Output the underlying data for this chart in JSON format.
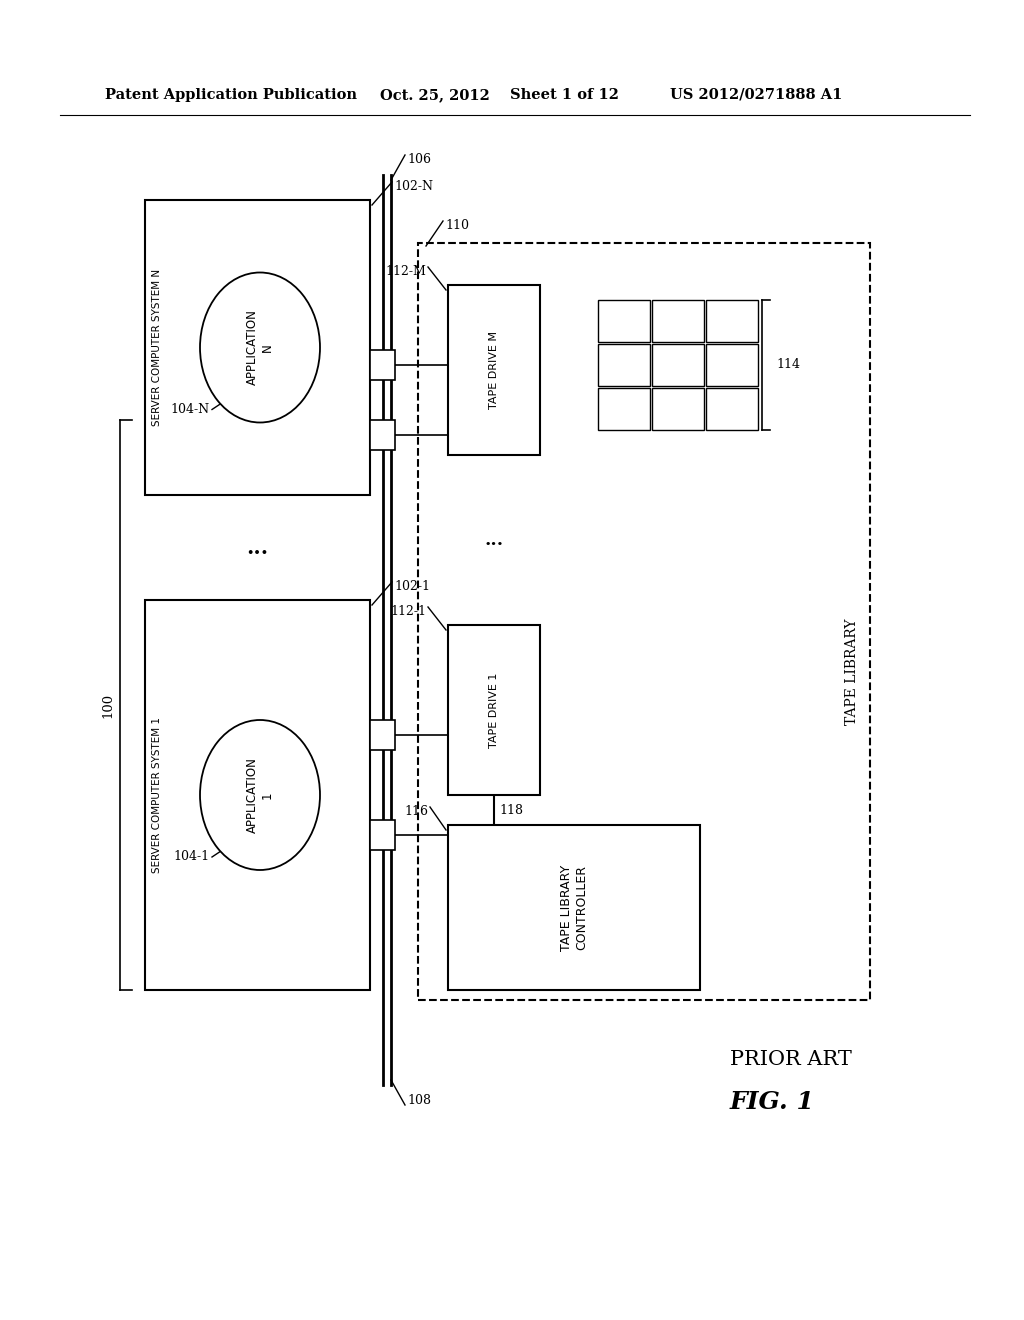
{
  "bg_color": "#ffffff",
  "header_text": "Patent Application Publication",
  "header_date": "Oct. 25, 2012",
  "header_sheet": "Sheet 1 of 12",
  "header_patent": "US 2012/0271888 A1",
  "fig_label": "FIG. 1",
  "prior_art": "PRIOR ART",
  "label_100": "100",
  "label_102_1": "102-1",
  "label_102_N": "102-N",
  "label_104_1": "104-1",
  "label_104_N": "104-N",
  "label_106": "106",
  "label_108": "108",
  "label_110": "110",
  "label_112_1": "112-1",
  "label_112_M": "112-M",
  "label_114": "114",
  "label_116": "116",
  "label_118": "118",
  "text_server1": "SERVER COMPUTER SYSTEM 1",
  "text_serverN": "SERVER COMPUTER SYSTEM N",
  "text_app1": "APPLICATION\n1",
  "text_appN": "APPLICATION\nN",
  "text_tape_drive1": "TAPE DRIVE 1",
  "text_tape_driveM": "TAPE DRIVE M",
  "text_tape_lib_ctrl": "TAPE LIBRARY\nCONTROLLER",
  "text_tape_library": "TAPE LIBRARY"
}
